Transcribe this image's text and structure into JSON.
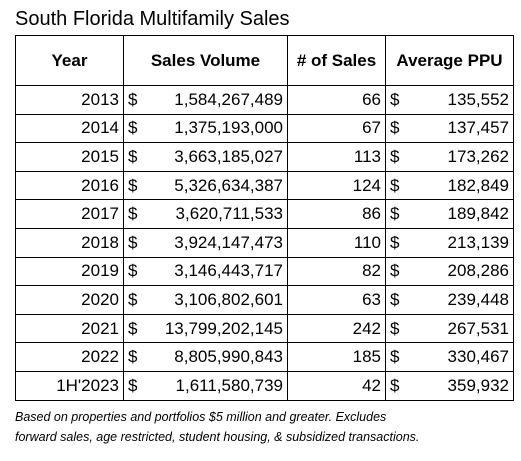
{
  "title": "South Florida Multifamily Sales",
  "table": {
    "header": [
      "Year",
      "Sales Volume",
      "# of Sales",
      "Average PPU"
    ],
    "rows": [
      [
        "2013",
        "$",
        "1,584,267,489",
        "66",
        "$",
        "135,552"
      ],
      [
        "2014",
        "$",
        "1,375,193,000",
        "67",
        "$",
        "137,457"
      ],
      [
        "2015",
        "$",
        "3,663,185,027",
        "113",
        "$",
        "173,262"
      ],
      [
        "2016",
        "$",
        "5,326,634,387",
        "124",
        "$",
        "182,849"
      ],
      [
        "2017",
        "$",
        "3,620,711,533",
        "86",
        "$",
        "189,842"
      ],
      [
        "2018",
        "$",
        "3,924,147,473",
        "110",
        "$",
        "213,139"
      ],
      [
        "2019",
        "$",
        "3,146,443,717",
        "82",
        "$",
        "208,286"
      ],
      [
        "2020",
        "$",
        "3,106,802,601",
        "63",
        "$",
        "239,448"
      ],
      [
        "2021",
        "$",
        "13,799,202,145",
        "242",
        "$",
        "267,531"
      ],
      [
        "2022",
        "$",
        "8,805,990,843",
        "185",
        "$",
        "330,467"
      ],
      [
        "1H'2023",
        "$",
        "1,611,580,739",
        "42",
        "$",
        "359,932"
      ]
    ]
  },
  "footnote": [
    "Based on properties and portfolios $5 million and greater. Excludes",
    "forward sales, age restricted, student housing, & subsidized transactions."
  ]
}
